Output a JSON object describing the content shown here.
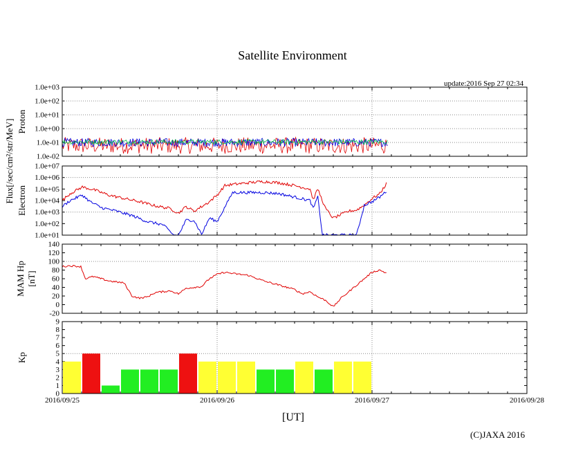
{
  "title": "Satellite Environment",
  "update_text": "update:2016 Sep 27 02:34",
  "x_unit_label": "[UT]",
  "copyright": "(C)JAXA 2016",
  "x_tick_labels": [
    "2016/09/25",
    "2016/09/26",
    "2016/09/27",
    "2016/09/28"
  ],
  "colors": {
    "red": "#e00000",
    "blue": "#0000e0",
    "green": "#00c040",
    "kp_green": "#22ee22",
    "kp_yellow": "#ffff33",
    "kp_red": "#ee1111"
  },
  "chart_data": [
    {
      "type": "line",
      "name": "proton",
      "ylabel_lines": [
        "Proton"
      ],
      "yscale": "log",
      "ylim": [
        0.01,
        1000
      ],
      "yticks": [
        "1.0e-02",
        "1.0e-01",
        "1.0e+00",
        "1.0e+01",
        "1.0e+02",
        "1.0e+03"
      ],
      "xlim_days": [
        0,
        3
      ],
      "data_end_day": 2.1,
      "series": [
        {
          "name": "proton-red",
          "color": "red",
          "description": "noise near 1.0e-02 to 1.0e-01"
        },
        {
          "name": "proton-blue",
          "color": "blue",
          "description": "noise near 1.0e-01"
        },
        {
          "name": "proton-green",
          "color": "green",
          "description": "noise near 1.0e-01"
        }
      ]
    },
    {
      "type": "line",
      "name": "electron",
      "ylabel_lines": [
        "Electron"
      ],
      "shared_ylabel": "Flux[/sec/cm²/str/MeV]",
      "yscale": "log",
      "ylim": [
        10,
        10000000
      ],
      "yticks": [
        "1.0e+01",
        "1.0e+02",
        "1.0e+03",
        "1.0e+04",
        "1.0e+05",
        "1.0e+06",
        "1.0e+07"
      ],
      "xlim_days": [
        0,
        3
      ],
      "series": [
        {
          "name": "electron-red",
          "color": "red",
          "x": [
            0,
            0.05,
            0.13,
            0.2,
            0.3,
            0.4,
            0.5,
            0.6,
            0.7,
            0.75,
            0.8,
            0.85,
            0.9,
            0.95,
            1.0,
            1.05,
            1.1,
            1.2,
            1.3,
            1.4,
            1.5,
            1.6,
            1.62,
            1.65,
            1.7,
            1.75,
            1.8,
            1.85,
            1.9,
            1.95,
            2.0,
            2.05,
            2.1
          ],
          "y": [
            10000,
            40000,
            150000,
            90000,
            30000,
            15000,
            8000,
            3500,
            2000,
            800,
            3000,
            1200,
            3000,
            8000,
            30000,
            200000,
            250000,
            350000,
            450000,
            350000,
            200000,
            100000,
            12000,
            100000,
            2000,
            300,
            600,
            1200,
            1500,
            4000,
            15000,
            40000,
            400000
          ]
        },
        {
          "name": "electron-blue",
          "color": "blue",
          "x": [
            0,
            0.05,
            0.13,
            0.18,
            0.25,
            0.35,
            0.45,
            0.55,
            0.65,
            0.72,
            0.75,
            0.8,
            0.85,
            0.9,
            0.95,
            1.0,
            1.1,
            1.2,
            1.3,
            1.4,
            1.5,
            1.6,
            1.62,
            1.65,
            1.68,
            1.7,
            1.75,
            1.8,
            1.85,
            1.9,
            1.95,
            2.0,
            2.05,
            2.1
          ],
          "y": [
            3000,
            10000,
            30000,
            8000,
            2500,
            1200,
            500,
            150,
            80,
            10,
            10,
            200,
            200,
            12,
            300,
            150,
            50000,
            50000,
            50000,
            40000,
            20000,
            10000,
            2000,
            20000,
            10,
            10,
            10,
            10,
            10,
            10,
            4000,
            8000,
            20000,
            80000
          ]
        }
      ]
    },
    {
      "type": "line",
      "name": "hp",
      "ylabel_lines": [
        "MAM Hp",
        "[nT]"
      ],
      "yscale": "linear",
      "ylim": [
        -20,
        140
      ],
      "yticks": [
        "-20",
        "0",
        "20",
        "40",
        "60",
        "80",
        "100",
        "120",
        "140"
      ],
      "xlim_days": [
        0,
        3
      ],
      "series": [
        {
          "name": "hp-red",
          "color": "red",
          "x": [
            0,
            0.05,
            0.12,
            0.15,
            0.2,
            0.3,
            0.4,
            0.45,
            0.5,
            0.55,
            0.6,
            0.7,
            0.75,
            0.8,
            0.9,
            0.95,
            1.0,
            1.05,
            1.1,
            1.2,
            1.3,
            1.4,
            1.45,
            1.5,
            1.55,
            1.6,
            1.65,
            1.7,
            1.75,
            1.8,
            1.85,
            1.9,
            1.95,
            2.0,
            2.05,
            2.1
          ],
          "y": [
            88,
            90,
            88,
            60,
            65,
            55,
            50,
            20,
            15,
            18,
            28,
            32,
            25,
            38,
            42,
            60,
            70,
            75,
            72,
            68,
            55,
            45,
            40,
            35,
            25,
            30,
            18,
            10,
            -5,
            15,
            30,
            45,
            60,
            75,
            80,
            72
          ]
        }
      ]
    },
    {
      "type": "bar",
      "name": "kp",
      "ylabel_lines": [
        "Kp"
      ],
      "yscale": "linear",
      "ylim": [
        0,
        9
      ],
      "yticks": [
        "0",
        "1",
        "2",
        "3",
        "4",
        "5",
        "6",
        "7",
        "8",
        "9"
      ],
      "xlim_days": [
        0,
        3
      ],
      "bar_width_days": 0.125,
      "values": [
        4,
        5,
        1,
        3,
        3,
        3,
        5,
        4,
        4,
        4,
        3,
        3,
        4,
        3,
        4,
        4
      ],
      "bar_colors": [
        "kp_yellow",
        "kp_red",
        "kp_green",
        "kp_green",
        "kp_green",
        "kp_green",
        "kp_red",
        "kp_yellow",
        "kp_yellow",
        "kp_yellow",
        "kp_green",
        "kp_green",
        "kp_yellow",
        "kp_green",
        "kp_yellow",
        "kp_yellow"
      ]
    }
  ]
}
